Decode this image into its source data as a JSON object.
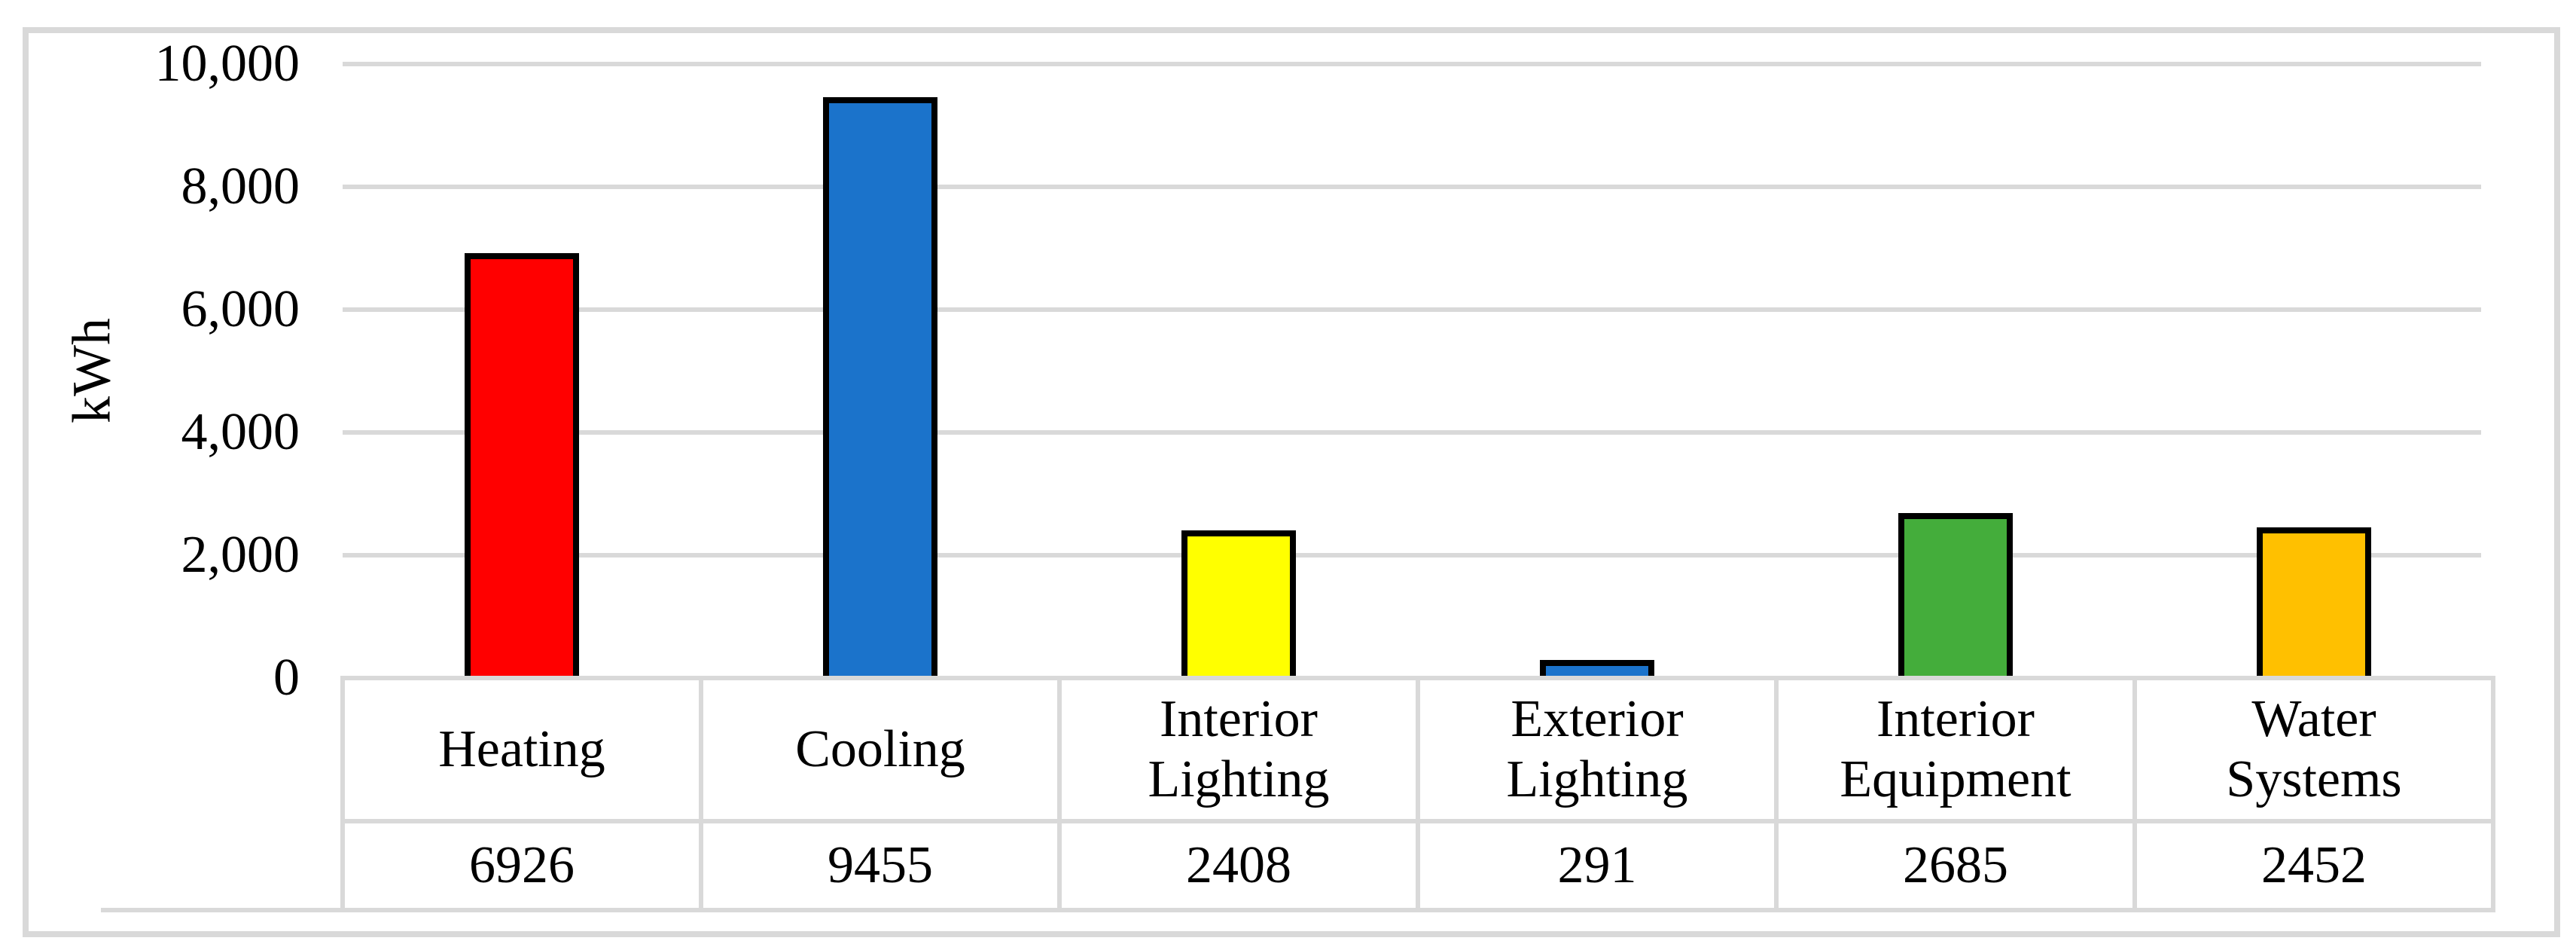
{
  "figure": {
    "background": "#FFFFFF",
    "border_color": "#D9D9D9"
  },
  "chart_data": {
    "type": "bar",
    "title": "",
    "xlabel": "",
    "ylabel": "kWh",
    "categories": [
      "Heating",
      "Cooling",
      "Interior Lighting",
      "Exterior Lighting",
      "Interior Equipment",
      "Water Systems"
    ],
    "values": [
      6926,
      9455,
      2408,
      291,
      2685,
      2452
    ],
    "bar_colors": [
      "#FF0000",
      "#1B73CB",
      "#FFFF00",
      "#1B73CB",
      "#44AD3B",
      "#FFC000"
    ],
    "bar_border_color": "#000000",
    "ylim": [
      0,
      10000
    ],
    "ytick_values": [
      10000,
      8000,
      6000,
      4000,
      2000,
      0
    ],
    "ytick_labels": [
      "10,000",
      "8,000",
      "6,000",
      "4,000",
      "2,000",
      "0"
    ],
    "grid": true,
    "gridline_color": "#D9D9D9",
    "legend": "none",
    "data_table": {
      "name_lines": [
        [
          "Heating"
        ],
        [
          "Cooling"
        ],
        [
          "Interior",
          "Lighting"
        ],
        [
          "Exterior",
          "Lighting"
        ],
        [
          "Interior",
          "Equipment"
        ],
        [
          "Water",
          "Systems"
        ]
      ],
      "value_labels": [
        "6926",
        "9455",
        "2408",
        "291",
        "2685",
        "2452"
      ]
    }
  }
}
